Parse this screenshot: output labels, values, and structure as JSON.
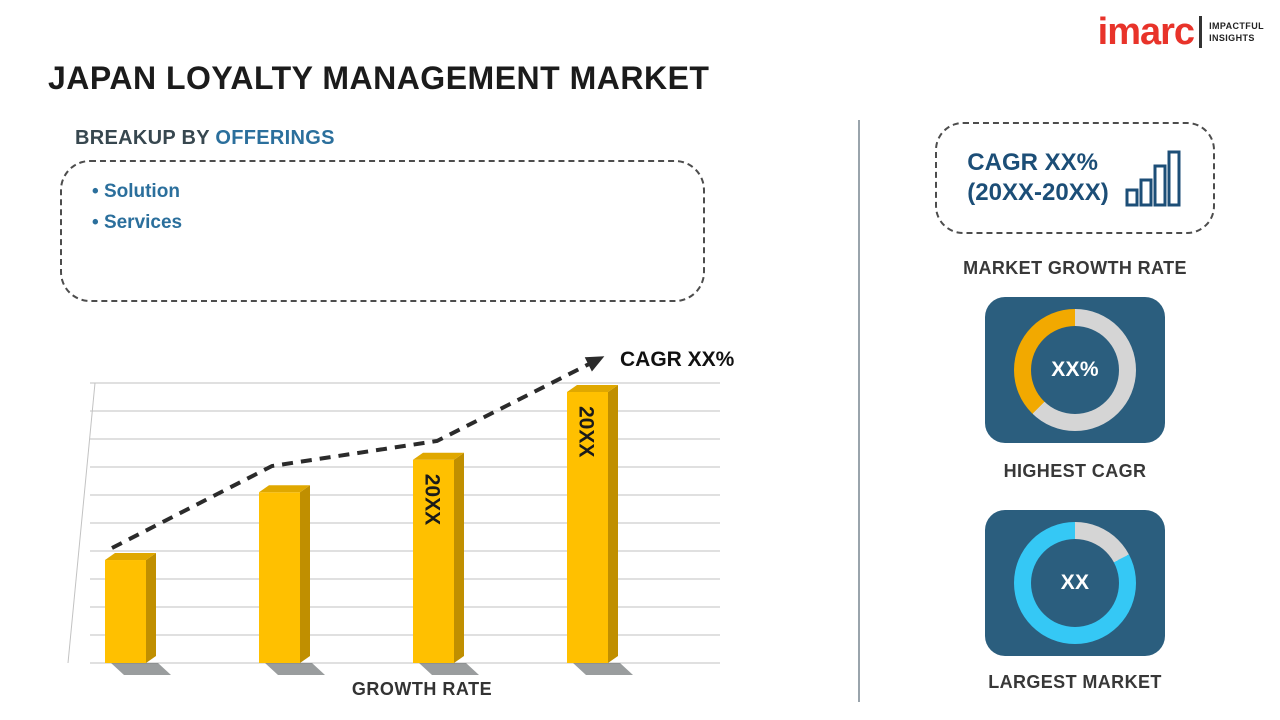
{
  "page": {
    "title": "JAPAN LOYALTY MANAGEMENT MARKET"
  },
  "logo": {
    "brand": "imarc",
    "tagline_line1": "IMPACTFUL",
    "tagline_line2": "INSIGHTS"
  },
  "breakup": {
    "heading_prefix": "BREAKUP BY ",
    "heading_highlight": "OFFERINGS",
    "items": [
      "Solution",
      "Services"
    ]
  },
  "chart_data": {
    "type": "bar",
    "title": "",
    "categories": [
      "",
      "",
      "20XX",
      "20XX"
    ],
    "bar_labels": [
      "",
      "",
      "20XX",
      "20XX"
    ],
    "values": [
      38,
      63,
      75,
      100
    ],
    "xlabel": "GROWTH RATE",
    "ylabel": "",
    "annotation": "CAGR XX%",
    "trend": "dashed ascending arrow",
    "legend": [],
    "grid": "horizontal",
    "bar_color": "#FFC000"
  },
  "sidebar": {
    "cagr_box": {
      "line1": "CAGR XX%",
      "line2": "(20XX-20XX)"
    },
    "market_growth_rate_label": "MARKET GROWTH RATE",
    "highest_cagr": {
      "value": "XX%",
      "label": "HIGHEST CAGR"
    },
    "largest_market": {
      "value": "XX",
      "label": "LARGEST MARKET"
    }
  },
  "colors": {
    "navy": "#2B5E7E",
    "navy-text": "#1C4E77",
    "gold": "#FFC000",
    "gold-dark": "#C08F00",
    "gold-top": "#E0A800",
    "gold-ring": "#F2A900",
    "cyan": "#35C8F5",
    "ring-gray": "#D5D5D5",
    "brand-red": "#E8332A",
    "blue-accent": "#2B6F9C"
  }
}
